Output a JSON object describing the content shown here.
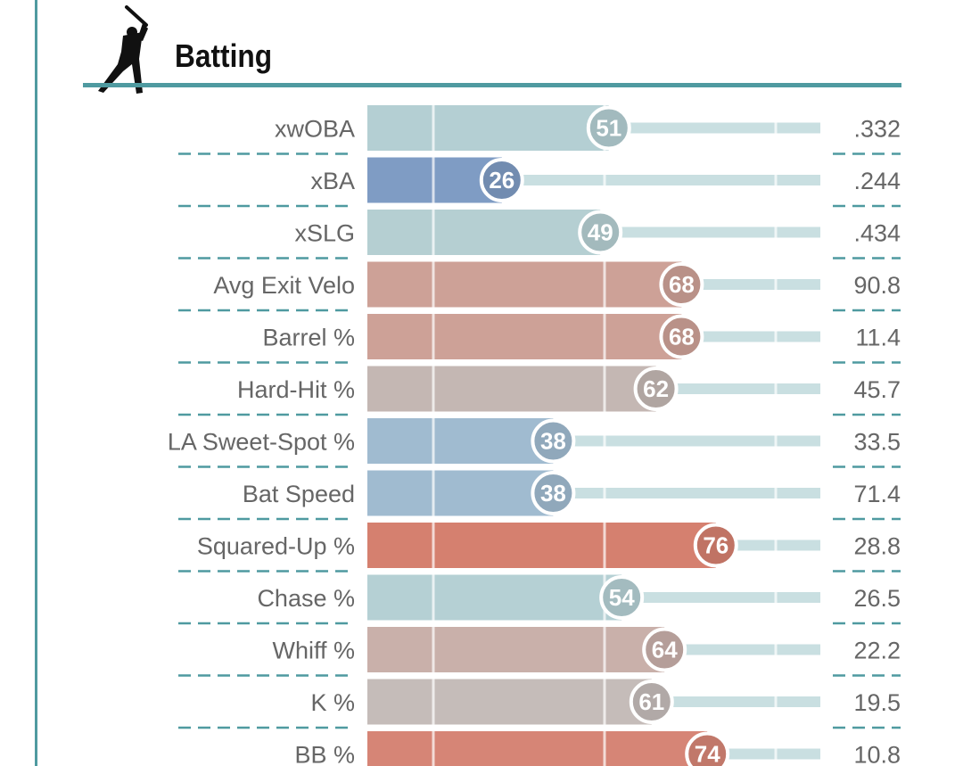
{
  "header": {
    "title": "Batting",
    "icon": "batter-silhouette-icon"
  },
  "chart_data": {
    "type": "bar",
    "orientation": "horizontal",
    "xlim": [
      0,
      100
    ],
    "reference_lines": [
      10,
      50,
      90
    ],
    "categories": [
      "xwOBA",
      "xBA",
      "xSLG",
      "Avg Exit Velo",
      "Barrel %",
      "Hard-Hit %",
      "LA Sweet-Spot %",
      "Bat Speed",
      "Squared-Up %",
      "Chase %",
      "Whiff %",
      "K %",
      "BB %"
    ],
    "percentiles": [
      51,
      26,
      49,
      68,
      68,
      62,
      38,
      38,
      76,
      54,
      64,
      61,
      74
    ],
    "stat_values": [
      ".332",
      ".244",
      ".434",
      "90.8",
      "11.4",
      "45.7",
      "33.5",
      "71.4",
      "28.8",
      "26.5",
      "22.2",
      "19.5",
      "10.8"
    ],
    "colors": [
      "#b4cfd3",
      "#7f9cc4",
      "#b5cfd2",
      "#cda197",
      "#cda197",
      "#c4b7b3",
      "#a0bbd0",
      "#a0bbd0",
      "#d5806f",
      "#b5d0d4",
      "#c9b0aa",
      "#c5bcb9",
      "#d68576"
    ],
    "track_color": "#c9dfe1",
    "divider_color": "#4f9aa0"
  }
}
